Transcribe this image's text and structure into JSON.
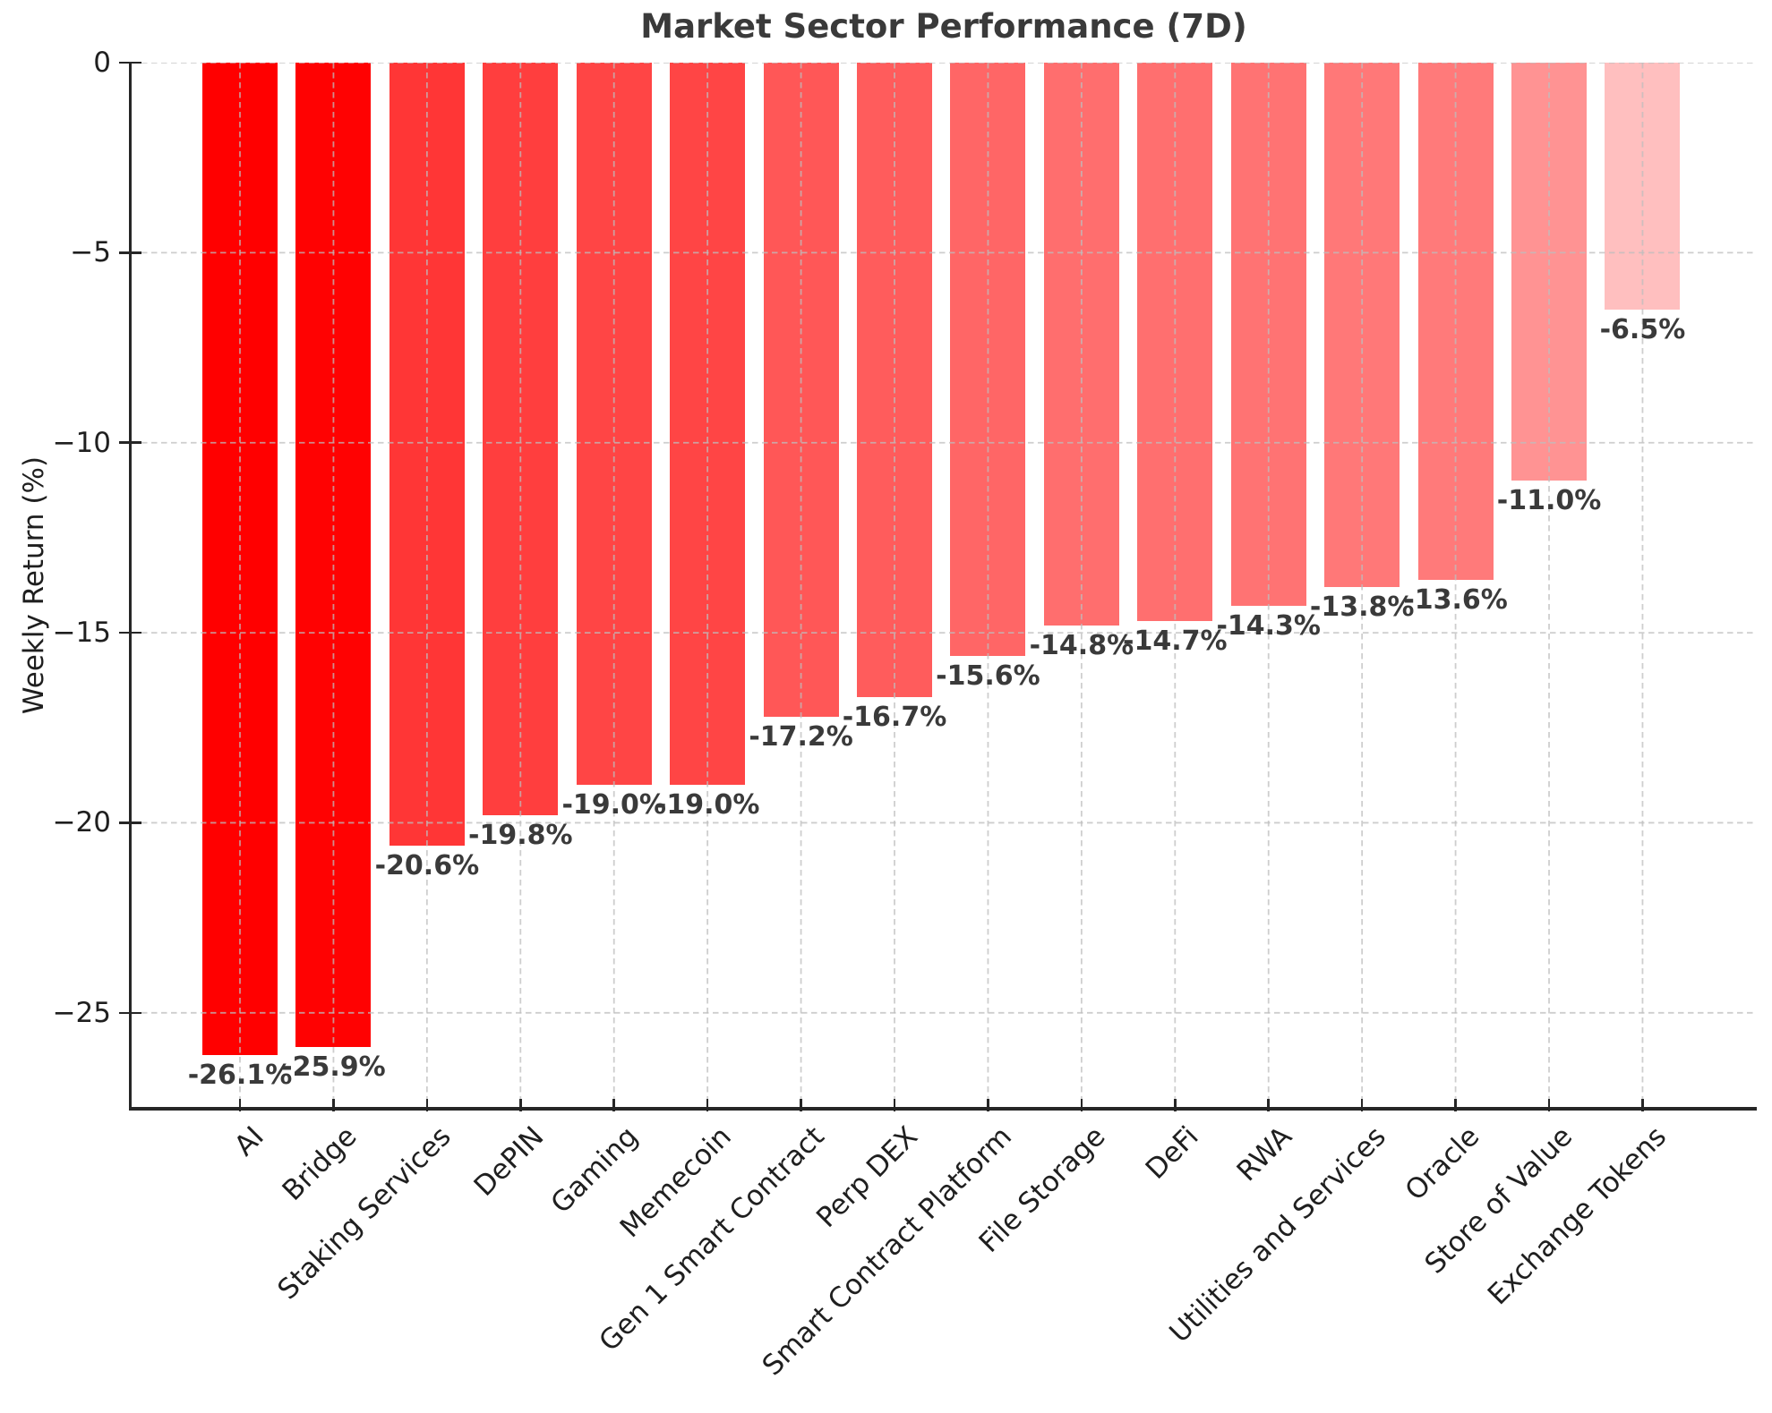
{
  "chart_data": {
    "type": "bar",
    "title": "Market Sector Performance (7D)",
    "xlabel": "",
    "ylabel": "Weekly Return (%)",
    "ylim": [
      -27.5,
      0
    ],
    "grid": true,
    "legend": false,
    "bar_orientation": "vertical",
    "categories": [
      "AI",
      "Bridge",
      "Staking Services",
      "DePIN",
      "Gaming",
      "Memecoin",
      "Gen 1 Smart Contract",
      "Perp DEX",
      "Smart Contract Platform",
      "File Storage",
      "DeFi",
      "RWA",
      "Utilities and Services",
      "Oracle",
      "Store of Value",
      "Exchange Tokens"
    ],
    "values": [
      -26.1,
      -25.9,
      -20.6,
      -19.8,
      -19.0,
      -19.0,
      -17.2,
      -16.7,
      -15.6,
      -14.8,
      -14.7,
      -14.3,
      -13.8,
      -13.6,
      -11.0,
      -6.5
    ],
    "bar_labels": [
      "-26.1%",
      "-25.9%",
      "-20.6%",
      "-19.8%",
      "-19.0%",
      "-19.0%",
      "-17.2%",
      "-16.7%",
      "-15.6%",
      "-14.8%",
      "-14.7%",
      "-14.3%",
      "-13.8%",
      "-13.6%",
      "-11.0%",
      "-6.5%"
    ],
    "bar_colors": [
      "#ff0000",
      "#ff0202",
      "#ff3636",
      "#ff3e3e",
      "#ff4545",
      "#ff4545",
      "#ff5757",
      "#ff5c5c",
      "#ff6666",
      "#ff6e6e",
      "#ff6f6f",
      "#ff7373",
      "#ff7878",
      "#ff7a7a",
      "#ff9393",
      "#ffbfbf"
    ],
    "yticks": [
      0,
      -5,
      -10,
      -15,
      -20,
      -25
    ],
    "ytick_labels": [
      "0",
      "−5",
      "−10",
      "−15",
      "−20",
      "−25"
    ],
    "colors": {
      "axis": "#262626",
      "tick_text": "#1f1f1f",
      "title_text": "#3a3a3a",
      "value_text": "#3a3a3a",
      "gridline": "#bebebe"
    }
  }
}
